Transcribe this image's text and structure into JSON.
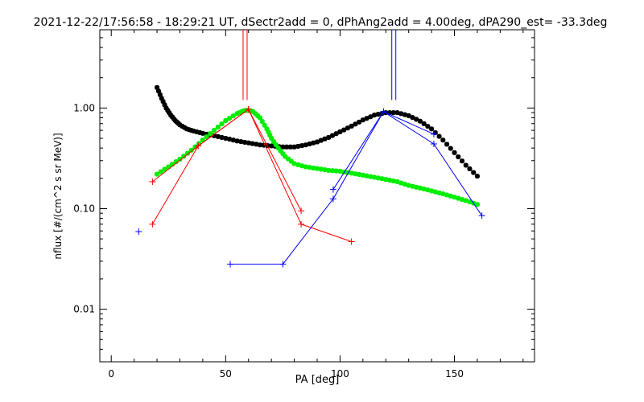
{
  "chart_data": {
    "type": "line",
    "title": "2021-12-22/17:56:58 - 18:29:21 UT, dSectr2add = 0, dPhAng2add = 4.00deg, dPA290_est= -33.3deg",
    "xlabel": "PA [deg]",
    "ylabel": "nflux [#/(cm^2 s sr MeV)]",
    "xlim": [
      -5,
      185
    ],
    "ylim": [
      0.003,
      6
    ],
    "yscale": "log",
    "xticks": [
      "0",
      "50",
      "100",
      "150"
    ],
    "yticks": [
      "0.01",
      "0.10",
      "1.00"
    ],
    "series": [
      {
        "color": "#000000",
        "style": "dots-thick",
        "x": [
          20,
          22,
          24,
          26,
          28,
          30,
          33,
          36,
          40,
          45,
          50,
          55,
          60,
          65,
          70,
          75,
          80,
          85,
          90,
          95,
          100,
          105,
          110,
          115,
          120,
          125,
          130,
          135,
          140,
          145,
          150,
          155,
          160
        ],
        "y": [
          1.6,
          1.25,
          1.0,
          0.85,
          0.75,
          0.68,
          0.62,
          0.59,
          0.56,
          0.53,
          0.5,
          0.47,
          0.45,
          0.43,
          0.42,
          0.41,
          0.41,
          0.43,
          0.46,
          0.51,
          0.58,
          0.66,
          0.76,
          0.85,
          0.9,
          0.9,
          0.84,
          0.74,
          0.62,
          0.48,
          0.36,
          0.27,
          0.21
        ]
      },
      {
        "color": "#00ee00",
        "style": "dots-thick",
        "x": [
          20,
          25,
          30,
          35,
          40,
          45,
          50,
          55,
          58,
          60,
          62,
          65,
          68,
          70,
          73,
          76,
          80,
          85,
          90,
          95,
          100,
          105,
          110,
          115,
          120,
          125,
          130,
          135,
          140,
          145,
          150,
          155,
          160
        ],
        "y": [
          0.22,
          0.26,
          0.31,
          0.38,
          0.48,
          0.6,
          0.75,
          0.88,
          0.94,
          0.95,
          0.92,
          0.8,
          0.62,
          0.5,
          0.4,
          0.33,
          0.28,
          0.26,
          0.25,
          0.24,
          0.235,
          0.225,
          0.215,
          0.205,
          0.195,
          0.185,
          0.17,
          0.16,
          0.15,
          0.14,
          0.13,
          0.12,
          0.11
        ]
      },
      {
        "color": "#ff0000",
        "style": "line-plus",
        "x": [
          18,
          38,
          60,
          83
        ],
        "y": [
          0.185,
          0.42,
          0.97,
          0.095
        ]
      },
      {
        "color": "#ff0000",
        "style": "line-plus",
        "x": [
          18,
          38,
          60,
          83,
          105
        ],
        "y": [
          0.07,
          0.42,
          0.97,
          0.07,
          0.047
        ]
      },
      {
        "color": "#0000ff",
        "style": "line-plus",
        "x": [
          52,
          75,
          97,
          119,
          141,
          162
        ],
        "y": [
          0.028,
          0.028,
          0.125,
          0.92,
          0.44,
          0.085
        ]
      },
      {
        "color": "#0000ff",
        "style": "line-plus",
        "x": [
          97,
          119,
          141
        ],
        "y": [
          0.155,
          0.92,
          0.55
        ]
      },
      {
        "color": "#0000ff",
        "style": "plus",
        "x": [
          12
        ],
        "y": [
          0.059
        ]
      }
    ],
    "markers": [
      {
        "color": "#ff0000",
        "x": 58.5,
        "y_from": 1.2,
        "y_to": 6
      },
      {
        "color": "#0000ff",
        "x": 123.5,
        "y_from": 1.2,
        "y_to": 6
      }
    ]
  }
}
